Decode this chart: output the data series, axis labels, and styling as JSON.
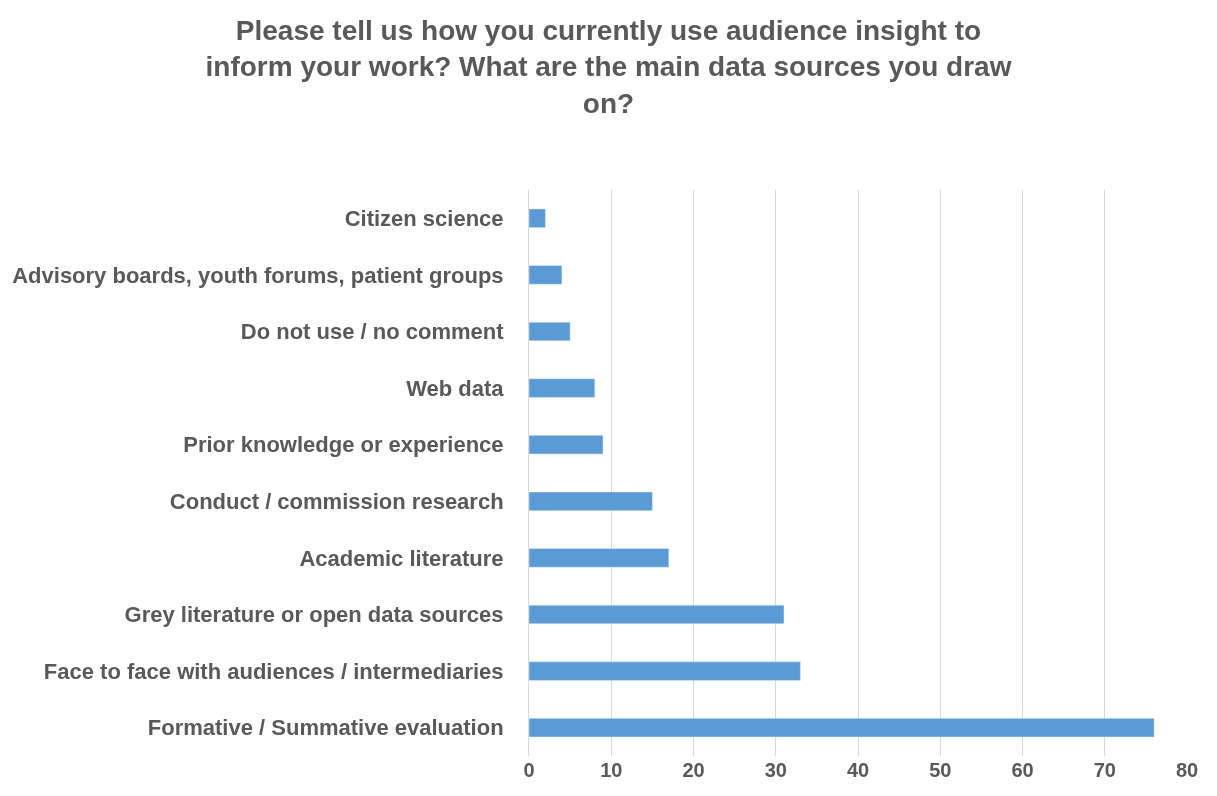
{
  "chart_data": {
    "type": "bar",
    "orientation": "horizontal",
    "title": "Please tell us how you currently use audience insight to inform your work? What are the main data sources you draw on?",
    "categories": [
      "Citizen science",
      "Advisory boards, youth forums, patient groups",
      "Do not use / no comment",
      "Web data",
      "Prior knowledge or experience",
      "Conduct / commission research",
      "Academic literature",
      "Grey literature or open data sources",
      "Face to face with audiences / intermediaries",
      "Formative / Summative evaluation"
    ],
    "values": [
      2,
      4,
      5,
      8,
      9,
      15,
      17,
      31,
      33,
      76
    ],
    "color": "#5b9bd5",
    "xlim": [
      0,
      80
    ],
    "xticks": [
      0,
      10,
      20,
      30,
      40,
      50,
      60,
      70,
      80
    ],
    "grid": "x"
  }
}
